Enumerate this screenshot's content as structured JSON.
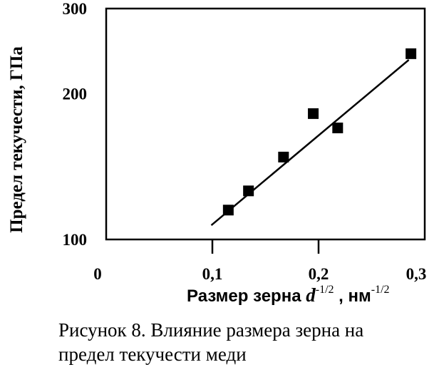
{
  "chart_data": {
    "type": "scatter",
    "title": "",
    "xlabel": {
      "prefix": "Размер зерна ",
      "variable": "d",
      "var_exponent": "-1/2",
      "separator": " , ",
      "unit": "нм",
      "unit_exponent": "-1/2"
    },
    "ylabel": "Предел текучести, ГПа",
    "xlim": [
      0,
      0.3
    ],
    "ylim": [
      100,
      300
    ],
    "ylog": true,
    "x_ticks": [
      {
        "value": 0,
        "label": "0"
      },
      {
        "value": 0.1,
        "label": "0,1"
      },
      {
        "value": 0.2,
        "label": "0,2"
      },
      {
        "value": 0.3,
        "label": "0,3"
      }
    ],
    "y_ticks": [
      {
        "value": 100,
        "label": "100"
      },
      {
        "value": 200,
        "label": "200"
      },
      {
        "value": 300,
        "label": "300"
      }
    ],
    "points": [
      {
        "x": 0.115,
        "y": 115
      },
      {
        "x": 0.134,
        "y": 126
      },
      {
        "x": 0.167,
        "y": 148
      },
      {
        "x": 0.195,
        "y": 182
      },
      {
        "x": 0.218,
        "y": 170
      },
      {
        "x": 0.287,
        "y": 242
      }
    ],
    "fit_line": {
      "x": [
        0.099,
        0.285
      ],
      "y": [
        107,
        235
      ]
    },
    "grid": false,
    "legend": "none"
  },
  "caption": {
    "line1": "Рисунок 8. Влияние размера зерна  на",
    "line2": "предел текучести меди"
  }
}
